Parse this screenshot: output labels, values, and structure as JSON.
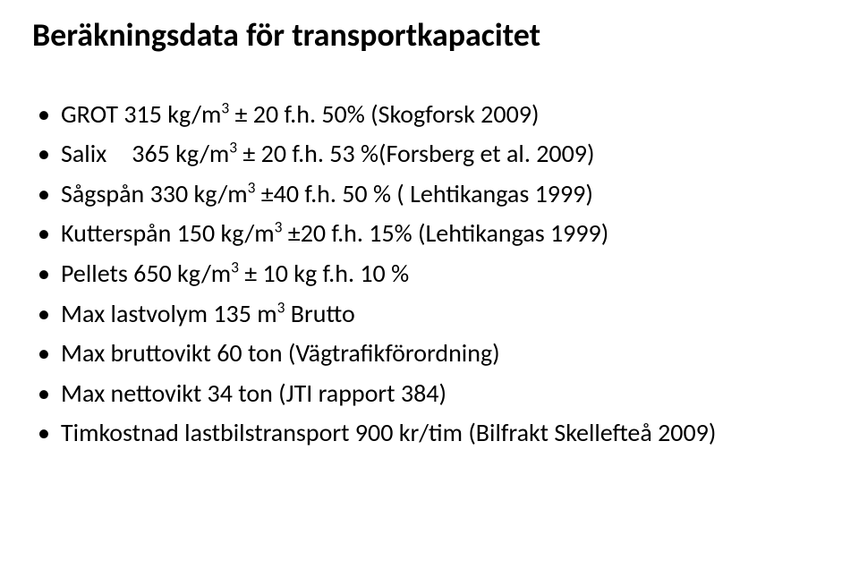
{
  "title": "Beräkningsdata för transportkapacitet",
  "title_fontsize": 36,
  "bullet_fontsize": 28,
  "colors": {
    "text": "#000000",
    "background": "#ffffff"
  },
  "bullets": [
    {
      "prefix": "GROT 315 kg/m",
      "sup": "3",
      "suffix": " ± 20 f.h. 50% (Skogforsk 2009)"
    },
    {
      "label": "Salix",
      "prefix_after_label": "365 kg/m",
      "sup": "3",
      "suffix": " ± 20 f.h. 53 %(Forsberg et al. 2009)"
    },
    {
      "prefix": "Sågspån 330 kg/m",
      "sup": "3",
      "suffix": " ±40 f.h. 50 % ( Lehtikangas 1999)"
    },
    {
      "prefix": "Kutterspån 150 kg/m",
      "sup": "3",
      "suffix": " ±20 f.h. 15% (Lehtikangas 1999)"
    },
    {
      "prefix": "Pellets 650 kg/m",
      "sup": "3",
      "suffix": " ± 10 kg f.h. 10 %"
    },
    {
      "prefix": "Max lastvolym 135 m",
      "sup": "3",
      "suffix": " Brutto"
    },
    {
      "plain": "Max bruttovikt 60 ton (Vägtrafikförordning)"
    },
    {
      "plain": "Max nettovikt 34 ton (JTI rapport 384)"
    },
    {
      "plain": "Timkostnad lastbilstransport 900 kr/tim (Bilfrakt Skellefteå 2009)"
    }
  ]
}
